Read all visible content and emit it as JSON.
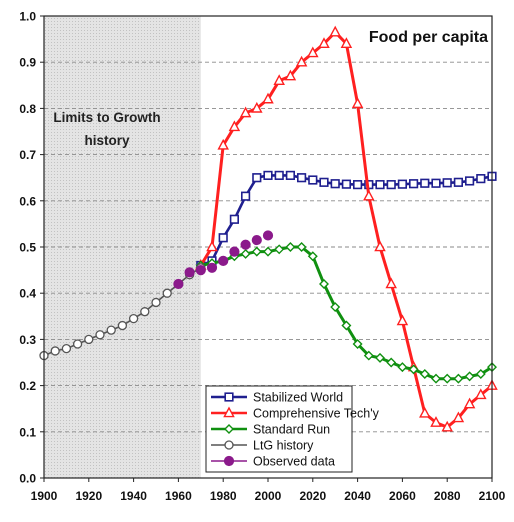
{
  "chart_data": {
    "type": "line",
    "title": "Food per capita",
    "shaded_region_label": [
      "Limits to Growth",
      "history"
    ],
    "shaded_region": [
      1900,
      1970
    ],
    "xlim": [
      1900,
      2100
    ],
    "ylim": [
      0.0,
      1.0
    ],
    "x_ticks": [
      "1900",
      "1920",
      "1940",
      "1960",
      "1980",
      "2000",
      "2020",
      "2040",
      "2060",
      "2080",
      "2100"
    ],
    "y_ticks": [
      "0.0",
      "0.1",
      "0.2",
      "0.3",
      "0.4",
      "0.5",
      "0.6",
      "0.7",
      "0.8",
      "0.9",
      "1.0"
    ],
    "grid": "horizontal dashed",
    "legend_position": "bottom-center",
    "series": [
      {
        "name": "Stabilized World",
        "color": "#1f1f8f",
        "marker": "square-open",
        "x": [
          1970,
          1975,
          1980,
          1985,
          1990,
          1995,
          2000,
          2005,
          2010,
          2015,
          2020,
          2025,
          2030,
          2035,
          2040,
          2045,
          2050,
          2055,
          2060,
          2065,
          2070,
          2075,
          2080,
          2085,
          2090,
          2095,
          2100
        ],
        "y": [
          0.46,
          0.47,
          0.52,
          0.56,
          0.61,
          0.65,
          0.655,
          0.655,
          0.655,
          0.65,
          0.645,
          0.64,
          0.637,
          0.636,
          0.635,
          0.635,
          0.635,
          0.635,
          0.636,
          0.637,
          0.638,
          0.638,
          0.639,
          0.64,
          0.643,
          0.648,
          0.653
        ]
      },
      {
        "name": "Comprehensive Tech'y",
        "color": "#ff2020",
        "marker": "triangle-open",
        "x": [
          1970,
          1975,
          1980,
          1985,
          1990,
          1995,
          2000,
          2005,
          2010,
          2015,
          2020,
          2025,
          2030,
          2035,
          2040,
          2045,
          2050,
          2055,
          2060,
          2065,
          2070,
          2075,
          2080,
          2085,
          2090,
          2095,
          2100
        ],
        "y": [
          0.46,
          0.5,
          0.72,
          0.76,
          0.79,
          0.8,
          0.82,
          0.86,
          0.87,
          0.9,
          0.92,
          0.94,
          0.965,
          0.94,
          0.81,
          0.61,
          0.5,
          0.42,
          0.34,
          0.24,
          0.14,
          0.12,
          0.11,
          0.13,
          0.16,
          0.18,
          0.2
        ]
      },
      {
        "name": "Standard Run",
        "color": "#109010",
        "marker": "diamond-open",
        "x": [
          1970,
          1975,
          1980,
          1985,
          1990,
          1995,
          2000,
          2005,
          2010,
          2015,
          2020,
          2025,
          2030,
          2035,
          2040,
          2045,
          2050,
          2055,
          2060,
          2065,
          2070,
          2075,
          2080,
          2085,
          2090,
          2095,
          2100
        ],
        "y": [
          0.46,
          0.465,
          0.47,
          0.48,
          0.485,
          0.49,
          0.49,
          0.495,
          0.5,
          0.5,
          0.48,
          0.42,
          0.37,
          0.33,
          0.29,
          0.265,
          0.26,
          0.25,
          0.24,
          0.235,
          0.225,
          0.215,
          0.215,
          0.215,
          0.22,
          0.225,
          0.24
        ]
      },
      {
        "name": "LtG history",
        "color": "#555555",
        "marker": "circle-open",
        "x": [
          1900,
          1905,
          1910,
          1915,
          1920,
          1925,
          1930,
          1935,
          1940,
          1945,
          1950,
          1955,
          1960,
          1965,
          1970
        ],
        "y": [
          0.265,
          0.275,
          0.28,
          0.29,
          0.3,
          0.31,
          0.32,
          0.33,
          0.345,
          0.36,
          0.38,
          0.4,
          0.42,
          0.44,
          0.455
        ]
      },
      {
        "name": "Observed data",
        "color": "#8b1a8b",
        "marker": "circle-filled",
        "x": [
          1960,
          1965,
          1970,
          1975,
          1980,
          1985,
          1990,
          1995,
          2000
        ],
        "y": [
          0.42,
          0.445,
          0.45,
          0.455,
          0.47,
          0.49,
          0.505,
          0.515,
          0.525
        ]
      }
    ]
  }
}
